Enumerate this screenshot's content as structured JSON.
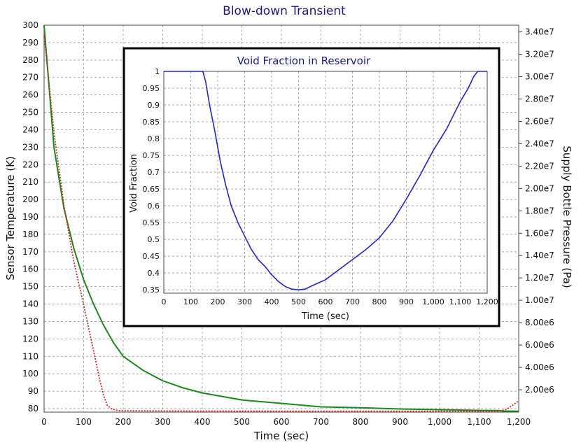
{
  "chart_data": [
    {
      "type": "line",
      "title": "Blow-down Transient",
      "xlabel": "Time (sec)",
      "ylabel": "Sensor Temperature (K)",
      "y2label": "Supply Bottle Pressure (Pa)",
      "xlim": [
        0,
        1200
      ],
      "ylim": [
        78,
        300
      ],
      "y2lim": [
        0,
        34600000
      ],
      "grid": true,
      "x_ticks": [
        0,
        100,
        200,
        300,
        400,
        500,
        600,
        700,
        800,
        900,
        1000,
        1100,
        1200
      ],
      "x_tick_labels": [
        "0",
        "100",
        "200",
        "300",
        "400",
        "500",
        "600",
        "700",
        "800",
        "900",
        "1,000",
        "1,100",
        "1,200"
      ],
      "y_ticks": [
        80,
        90,
        100,
        110,
        120,
        130,
        140,
        150,
        160,
        170,
        180,
        190,
        200,
        210,
        220,
        230,
        240,
        250,
        260,
        270,
        280,
        290,
        300
      ],
      "y_tick_labels": [
        "80",
        "90",
        "100",
        "110",
        "120",
        "130",
        "140",
        "150",
        "160",
        "170",
        "180",
        "190",
        "200",
        "210",
        "220",
        "230",
        "240",
        "250",
        "260",
        "270",
        "280",
        "290",
        "300"
      ],
      "y2_ticks": [
        2000000,
        4000000,
        6000000,
        8000000,
        10000000,
        12000000,
        14000000,
        16000000,
        18000000,
        20000000,
        22000000,
        24000000,
        26000000,
        28000000,
        30000000,
        32000000,
        34000000
      ],
      "y2_tick_labels": [
        "2.00e6",
        "4.00e6",
        "6.00e6",
        "8.00e6",
        "1.00e7",
        "1.20e7",
        "1.40e7",
        "1.60e7",
        "1.80e7",
        "2.00e7",
        "2.20e7",
        "2.40e7",
        "2.60e7",
        "2.80e7",
        "3.00e7",
        "3.20e7",
        "3.40e7"
      ],
      "series": [
        {
          "color": "#1a8a1a",
          "style": "solid",
          "axis": "left",
          "x": [
            0,
            25,
            50,
            75,
            100,
            125,
            150,
            175,
            200,
            250,
            300,
            350,
            400,
            450,
            500,
            550,
            600,
            650,
            700,
            800,
            900,
            1000,
            1100,
            1150,
            1160,
            1200
          ],
          "y": [
            300,
            230,
            195,
            172,
            154,
            140,
            128,
            118,
            110,
            102,
            96,
            92,
            89,
            87,
            85,
            84,
            83,
            82,
            81,
            80.5,
            79.8,
            79.4,
            79.0,
            78.9,
            78.6,
            78.5
          ]
        },
        {
          "color": "#dd2222",
          "style": "dotted",
          "axis": "right",
          "x": [
            0,
            25,
            50,
            75,
            100,
            125,
            140,
            150,
            160,
            170,
            185,
            200,
            300,
            400,
            600,
            800,
            1000,
            1150,
            1170,
            1200
          ],
          "y": [
            33700000,
            25000000,
            18500000,
            13500000,
            9600000,
            5500000,
            3000000,
            1500000,
            600000,
            300000,
            150000,
            120000,
            100000,
            95000,
            90000,
            90000,
            90000,
            90000,
            250000,
            1000000
          ]
        }
      ]
    },
    {
      "type": "line",
      "title": "Void Fraction in Reservoir",
      "xlabel": "Time (sec)",
      "ylabel": "Void Fraction",
      "xlim": [
        0,
        1200
      ],
      "ylim": [
        0.34,
        1.0
      ],
      "grid": true,
      "x_ticks": [
        0,
        100,
        200,
        300,
        400,
        500,
        600,
        700,
        800,
        900,
        1000,
        1100,
        1200
      ],
      "x_tick_labels": [
        "0",
        "100",
        "200",
        "300",
        "400",
        "500",
        "600",
        "700",
        "800",
        "900",
        "1,000",
        "1,100",
        "1,200"
      ],
      "y_ticks": [
        0.35,
        0.4,
        0.45,
        0.5,
        0.55,
        0.6,
        0.65,
        0.7,
        0.75,
        0.8,
        0.85,
        0.9,
        0.95,
        1.0
      ],
      "y_tick_labels": [
        "0.35",
        "0.4",
        "0.45",
        "0.5",
        "0.55",
        "0.6",
        "0.65",
        "0.7",
        "0.75",
        "0.8",
        "0.85",
        "0.9",
        "0.95",
        "1"
      ],
      "series": [
        {
          "color": "#2222dd",
          "style": "solid",
          "x": [
            0,
            50,
            100,
            145,
            155,
            170,
            190,
            210,
            230,
            250,
            275,
            300,
            325,
            350,
            375,
            400,
            425,
            450,
            475,
            500,
            525,
            550,
            600,
            650,
            700,
            750,
            800,
            850,
            900,
            950,
            1000,
            1050,
            1100,
            1130,
            1150,
            1165,
            1180,
            1200
          ],
          "y": [
            1.0,
            1.0,
            1.0,
            1.0,
            0.97,
            0.9,
            0.82,
            0.73,
            0.66,
            0.6,
            0.55,
            0.51,
            0.47,
            0.44,
            0.42,
            0.395,
            0.375,
            0.36,
            0.352,
            0.35,
            0.352,
            0.362,
            0.38,
            0.41,
            0.44,
            0.47,
            0.505,
            0.555,
            0.62,
            0.69,
            0.765,
            0.83,
            0.91,
            0.95,
            0.985,
            1.0,
            1.0,
            1.0
          ]
        }
      ]
    }
  ]
}
